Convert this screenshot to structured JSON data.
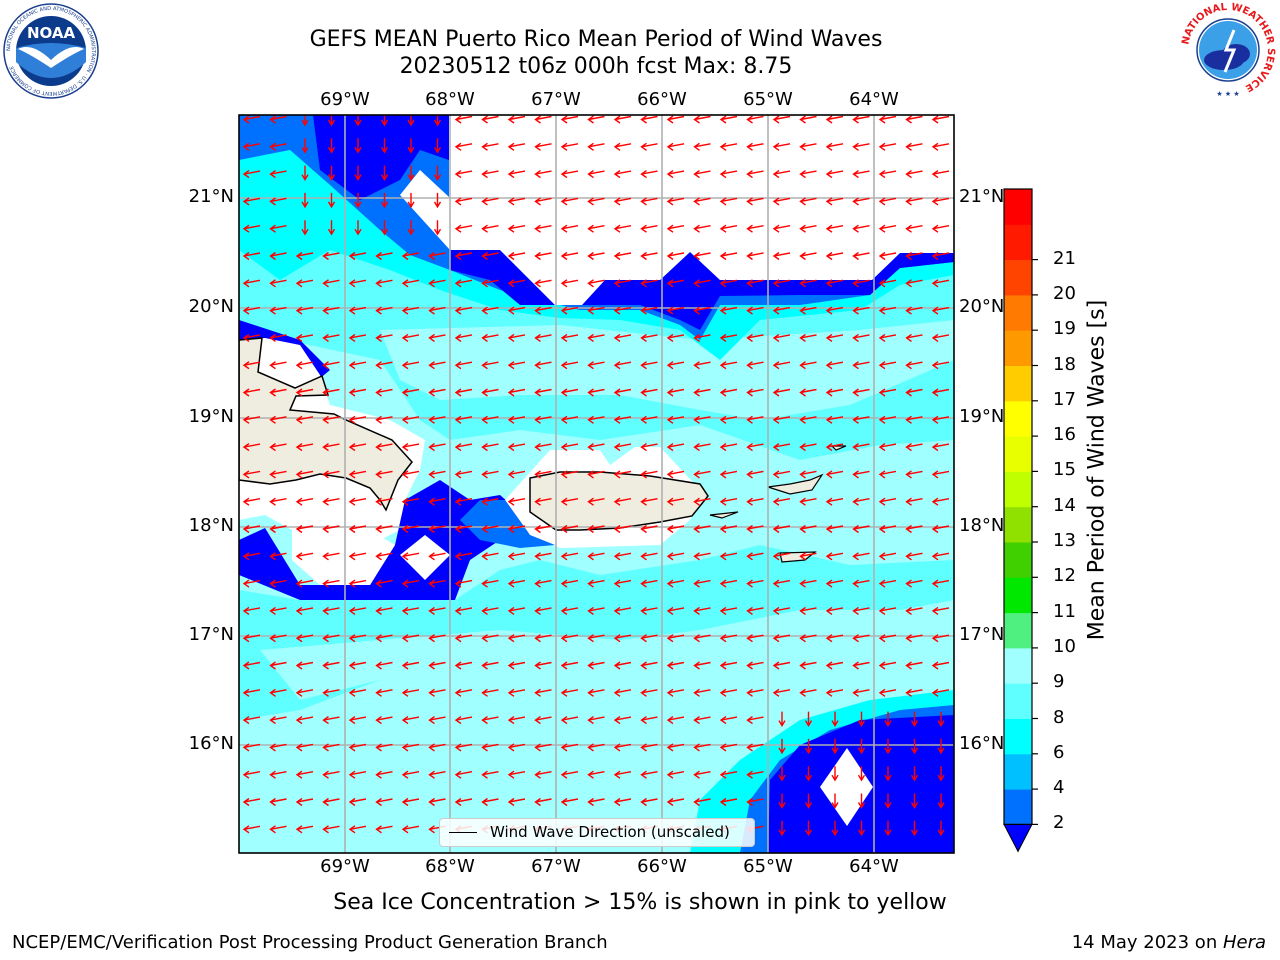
{
  "header": {
    "title_line1": "GEFS MEAN Puerto Rico Mean Period of Wind Waves",
    "title_line2": "20230512 t06z 000h fcst   Max: 8.75",
    "logo_left": "NOAA",
    "logo_left_ring": "NATIONAL OCEANIC AND ATMOSPHERIC ADMINISTRATION · U.S. DEPARTMENT OF COMMERCE",
    "logo_right_ring": "NATIONAL WEATHER SERVICE"
  },
  "map": {
    "lon_labels": [
      "69°W",
      "68°W",
      "67°W",
      "66°W",
      "65°W",
      "64°W"
    ],
    "lat_labels": [
      "21°N",
      "20°N",
      "19°N",
      "18°N",
      "17°N",
      "16°N"
    ],
    "extent": {
      "lon": [
        -69.98,
        -63.25
      ],
      "lat": [
        15.05,
        21.78
      ]
    },
    "grid": true,
    "vector_direction": "westward (easterly flow)",
    "vector_color": "#ff0000",
    "legend_label": "Wind Wave Direction (unscaled)"
  },
  "colorbar": {
    "label": "Mean Period of Wind Waves [s]",
    "ticks": [
      "2",
      "4",
      "6",
      "8",
      "9",
      "10",
      "11",
      "12",
      "13",
      "14",
      "15",
      "16",
      "17",
      "18",
      "19",
      "20",
      "21"
    ],
    "colors": [
      "#0070ff",
      "#00c0ff",
      "#00ffff",
      "#60ffff",
      "#a0ffff",
      "#50f080",
      "#00e800",
      "#40d000",
      "#90e000",
      "#c0ff00",
      "#e8ff00",
      "#ffff00",
      "#ffcc00",
      "#ff9900",
      "#ff7a00",
      "#ff4400",
      "#ff1a00",
      "#ff0000"
    ],
    "under_color": "#0000ff",
    "extend": "min"
  },
  "footer": {
    "ice_note": "Sea Ice Concentration > 15% is shown in pink to yellow",
    "left": "NCEP/EMC/Verification Post Processing Product Generation Branch",
    "right_date": "14 May 2023 on ",
    "right_machine": "Hera"
  }
}
